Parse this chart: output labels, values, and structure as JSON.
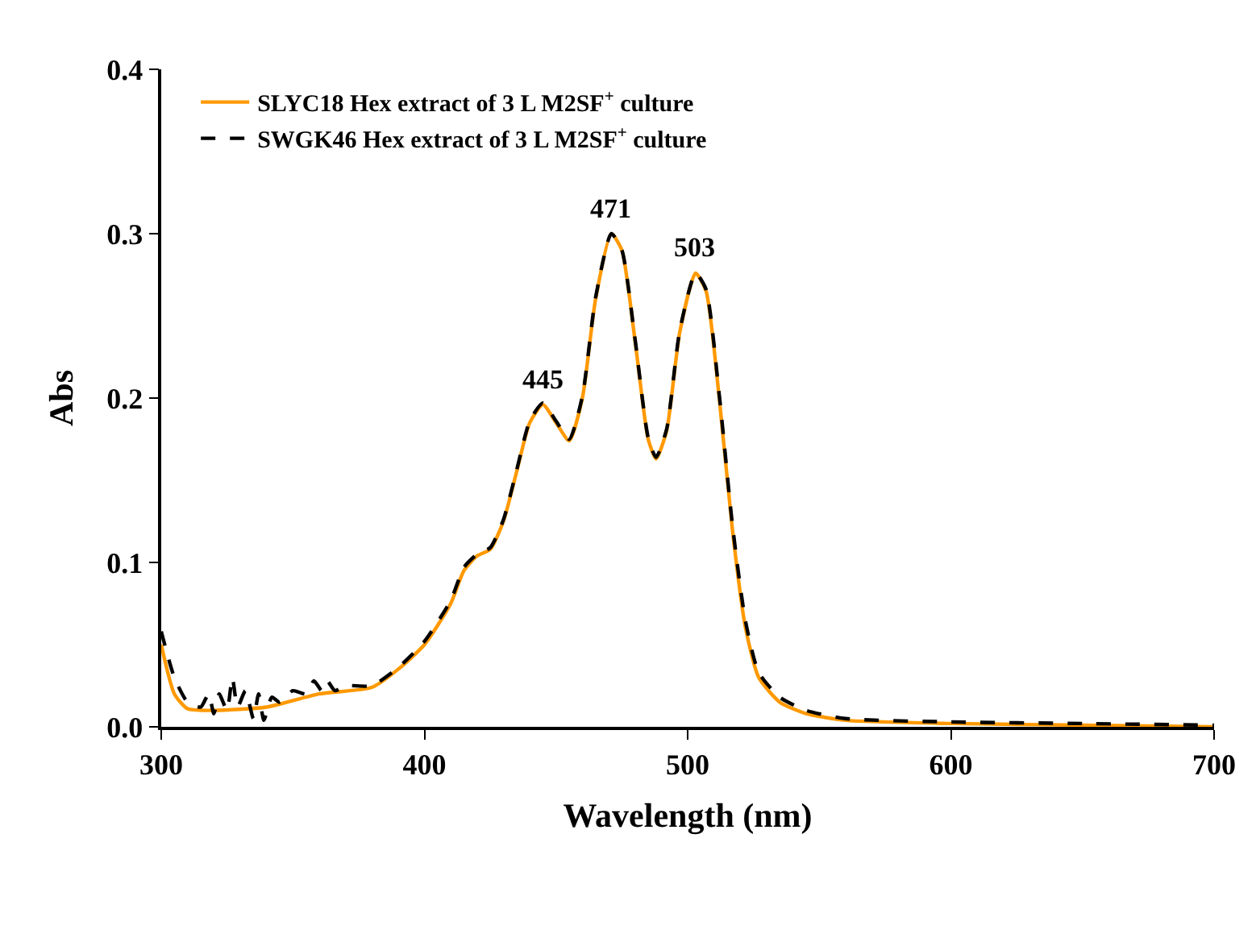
{
  "chart_data": {
    "type": "line",
    "xlabel": "Wavelength (nm)",
    "ylabel": "Abs",
    "xlim": [
      300,
      700
    ],
    "xticks": [
      300,
      400,
      500,
      600,
      700
    ],
    "ylim": [
      0,
      0.4
    ],
    "yticks": [
      {
        "value": 0,
        "label": "0.0"
      },
      0.1,
      0.2,
      0.3,
      0.4
    ],
    "legend": "top left",
    "marker": "none",
    "series": [
      {
        "name": "SLYC18 Hex extract of 3 L M2SF$^{+}$ culture",
        "color": "#ff9900",
        "line_style": "solid",
        "x": [
          300,
          305,
          310,
          320,
          340,
          360,
          380,
          390,
          400,
          410,
          415,
          420,
          425,
          430,
          435,
          440,
          445,
          450,
          455,
          460,
          465,
          471,
          475,
          480,
          485,
          488,
          492,
          497,
          503,
          507,
          512,
          517,
          522,
          527,
          535,
          545,
          560,
          600,
          650,
          700
        ],
        "values": [
          0.05,
          0.02,
          0.011,
          0.01,
          0.012,
          0.02,
          0.024,
          0.035,
          0.05,
          0.075,
          0.095,
          0.104,
          0.108,
          0.125,
          0.155,
          0.185,
          0.196,
          0.185,
          0.174,
          0.2,
          0.26,
          0.3,
          0.29,
          0.235,
          0.175,
          0.163,
          0.18,
          0.24,
          0.276,
          0.265,
          0.2,
          0.12,
          0.06,
          0.03,
          0.015,
          0.008,
          0.004,
          0.002,
          0.001,
          0.0
        ]
      },
      {
        "name": "SWGK46 Hex extract of 3 L M2SF$^{+}$ culture",
        "color": "#000000",
        "line_style": "dashed",
        "x": [
          300,
          305,
          310,
          315,
          318,
          320,
          322,
          325,
          327,
          329,
          332,
          335,
          337,
          339,
          342,
          345,
          350,
          355,
          358,
          361,
          363,
          366,
          370,
          380,
          390,
          400,
          410,
          415,
          420,
          425,
          430,
          435,
          440,
          445,
          450,
          455,
          460,
          465,
          471,
          475,
          480,
          485,
          488,
          492,
          497,
          503,
          507,
          512,
          517,
          522,
          527,
          535,
          545,
          560,
          600,
          650,
          700
        ],
        "values": [
          0.058,
          0.03,
          0.015,
          0.012,
          0.02,
          0.008,
          0.02,
          0.01,
          0.03,
          0.012,
          0.022,
          0.005,
          0.02,
          0.004,
          0.018,
          0.015,
          0.022,
          0.02,
          0.028,
          0.022,
          0.028,
          0.022,
          0.025,
          0.025,
          0.036,
          0.052,
          0.077,
          0.097,
          0.105,
          0.109,
          0.126,
          0.156,
          0.186,
          0.197,
          0.186,
          0.175,
          0.201,
          0.261,
          0.3,
          0.29,
          0.236,
          0.176,
          0.164,
          0.181,
          0.241,
          0.276,
          0.266,
          0.202,
          0.123,
          0.064,
          0.033,
          0.018,
          0.01,
          0.005,
          0.003,
          0.002,
          0.001
        ]
      }
    ],
    "annotations": [
      {
        "text": "445",
        "x": 445,
        "y": 0.196
      },
      {
        "text": "471",
        "x": 471,
        "y": 0.3
      },
      {
        "text": "503",
        "x": 503,
        "y": 0.276
      }
    ]
  }
}
